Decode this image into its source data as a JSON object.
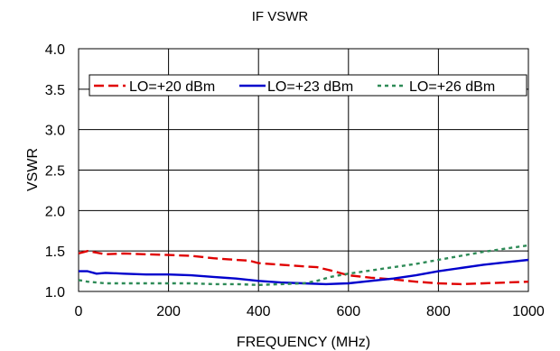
{
  "chart_data": {
    "type": "line",
    "title": "IF VSWR",
    "xlabel": "FREQUENCY (MHz)",
    "ylabel": "VSWR",
    "xlim": [
      0,
      1000
    ],
    "ylim": [
      1.0,
      4.0
    ],
    "xticks": [
      0,
      200,
      400,
      600,
      800,
      1000
    ],
    "yticks": [
      1.0,
      1.5,
      2.0,
      2.5,
      3.0,
      3.5,
      4.0
    ],
    "xtick_labels": [
      "0",
      "200",
      "400",
      "600",
      "800",
      "1000"
    ],
    "ytick_labels": [
      "1.0",
      "1.5",
      "2.0",
      "2.5",
      "3.0",
      "3.5",
      "4.0"
    ],
    "grid": true,
    "legend_position": "top",
    "series": [
      {
        "name": "LO=+20 dBm",
        "color": "#e00000",
        "style": "dashed",
        "x": [
          0,
          20,
          40,
          60,
          100,
          150,
          200,
          250,
          300,
          350,
          380,
          400,
          450,
          500,
          530,
          560,
          600,
          650,
          700,
          750,
          800,
          850,
          900,
          950,
          1000
        ],
        "y": [
          1.47,
          1.5,
          1.48,
          1.46,
          1.47,
          1.46,
          1.45,
          1.44,
          1.41,
          1.39,
          1.38,
          1.35,
          1.33,
          1.31,
          1.3,
          1.26,
          1.2,
          1.17,
          1.15,
          1.12,
          1.1,
          1.09,
          1.1,
          1.11,
          1.12
        ]
      },
      {
        "name": "LO=+23 dBm",
        "color": "#0000cc",
        "style": "solid",
        "x": [
          0,
          20,
          40,
          60,
          100,
          150,
          200,
          250,
          300,
          350,
          400,
          450,
          500,
          550,
          600,
          650,
          700,
          750,
          800,
          850,
          900,
          950,
          1000
        ],
        "y": [
          1.25,
          1.25,
          1.22,
          1.23,
          1.22,
          1.21,
          1.21,
          1.2,
          1.18,
          1.16,
          1.13,
          1.11,
          1.1,
          1.09,
          1.1,
          1.13,
          1.16,
          1.2,
          1.25,
          1.29,
          1.33,
          1.36,
          1.39
        ]
      },
      {
        "name": "LO=+26 dBm",
        "color": "#2e8b57",
        "style": "dotted",
        "x": [
          0,
          20,
          40,
          60,
          100,
          150,
          200,
          250,
          300,
          350,
          400,
          450,
          500,
          530,
          560,
          600,
          650,
          700,
          750,
          800,
          850,
          900,
          950,
          1000
        ],
        "y": [
          1.14,
          1.12,
          1.11,
          1.1,
          1.1,
          1.1,
          1.1,
          1.1,
          1.09,
          1.09,
          1.08,
          1.09,
          1.1,
          1.13,
          1.18,
          1.22,
          1.26,
          1.3,
          1.34,
          1.39,
          1.44,
          1.49,
          1.53,
          1.57
        ]
      }
    ]
  }
}
